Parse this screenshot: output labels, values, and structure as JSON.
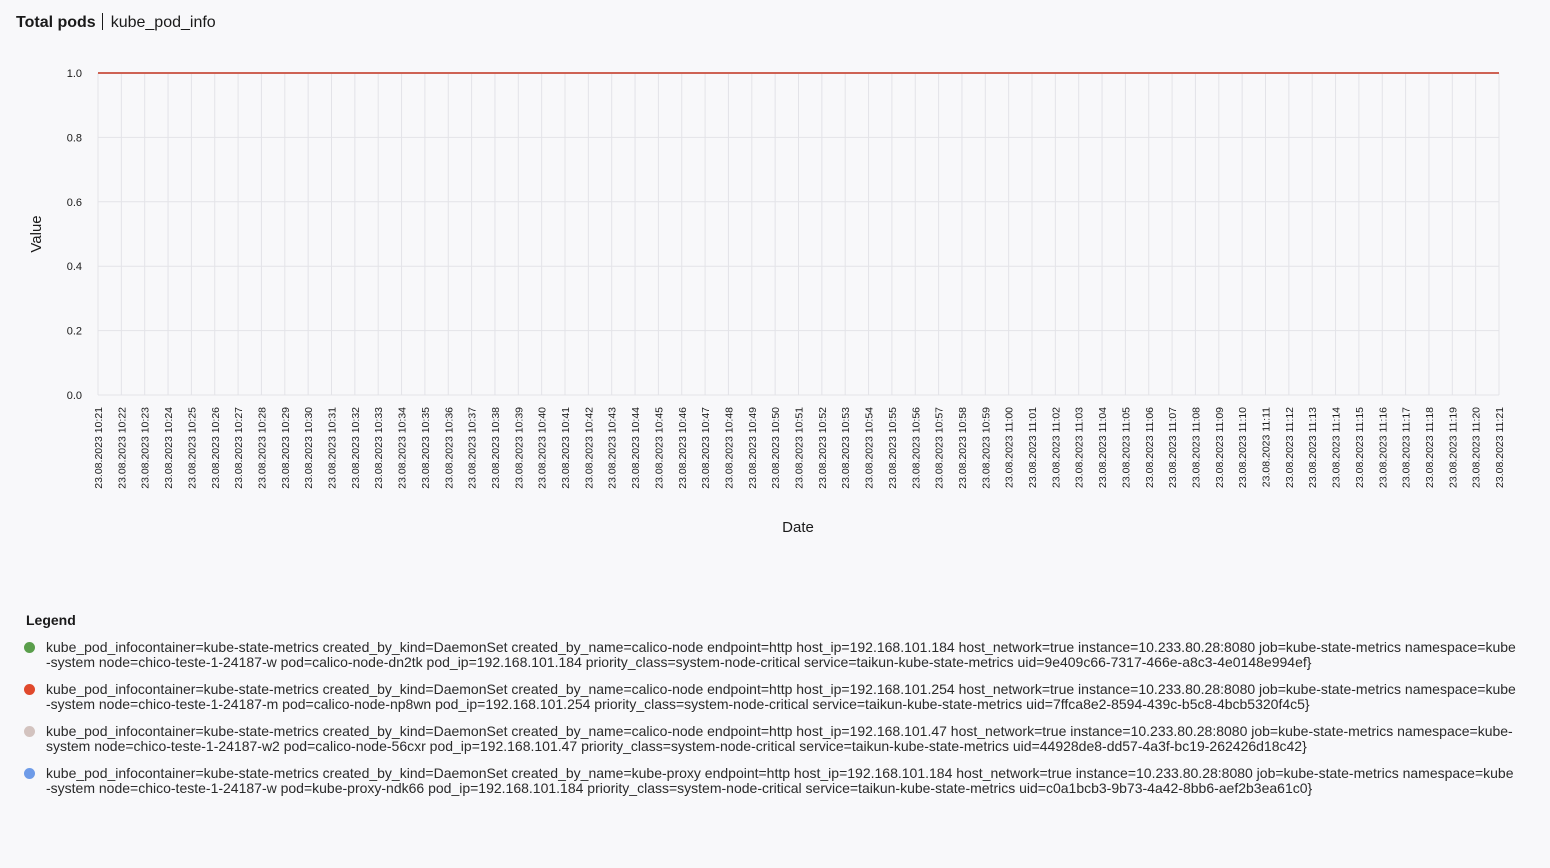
{
  "header": {
    "title": "Total pods",
    "subtitle": "kube_pod_info"
  },
  "chart_data": {
    "type": "line",
    "xlabel": "Date",
    "ylabel": "Value",
    "ylim": [
      0,
      1.0
    ],
    "yticks": [
      "0.0",
      "0.2",
      "0.4",
      "0.6",
      "0.8",
      "1.0"
    ],
    "grid": true,
    "x": [
      "23.08.2023 10:21",
      "23.08.2023 10:22",
      "23.08.2023 10:23",
      "23.08.2023 10:24",
      "23.08.2023 10:25",
      "23.08.2023 10:26",
      "23.08.2023 10:27",
      "23.08.2023 10:28",
      "23.08.2023 10:29",
      "23.08.2023 10:30",
      "23.08.2023 10:31",
      "23.08.2023 10:32",
      "23.08.2023 10:33",
      "23.08.2023 10:34",
      "23.08.2023 10:35",
      "23.08.2023 10:36",
      "23.08.2023 10:37",
      "23.08.2023 10:38",
      "23.08.2023 10:39",
      "23.08.2023 10:40",
      "23.08.2023 10:41",
      "23.08.2023 10:42",
      "23.08.2023 10:43",
      "23.08.2023 10:44",
      "23.08.2023 10:45",
      "23.08.2023 10:46",
      "23.08.2023 10:47",
      "23.08.2023 10:48",
      "23.08.2023 10:49",
      "23.08.2023 10:50",
      "23.08.2023 10:51",
      "23.08.2023 10:52",
      "23.08.2023 10:53",
      "23.08.2023 10:54",
      "23.08.2023 10:55",
      "23.08.2023 10:56",
      "23.08.2023 10:57",
      "23.08.2023 10:58",
      "23.08.2023 10:59",
      "23.08.2023 11:00",
      "23.08.2023 11:01",
      "23.08.2023 11:02",
      "23.08.2023 11:03",
      "23.08.2023 11:04",
      "23.08.2023 11:05",
      "23.08.2023 11:06",
      "23.08.2023 11:07",
      "23.08.2023 11:08",
      "23.08.2023 11:09",
      "23.08.2023 11:10",
      "23.08.2023 11:11",
      "23.08.2023 11:12",
      "23.08.2023 11:13",
      "23.08.2023 11:14",
      "23.08.2023 11:15",
      "23.08.2023 11:16",
      "23.08.2023 11:17",
      "23.08.2023 11:18",
      "23.08.2023 11:19",
      "23.08.2023 11:20",
      "23.08.2023 11:21"
    ],
    "series": [
      {
        "color": "#5a9e4b",
        "value": 1.0
      },
      {
        "color": "#e0492c",
        "value": 1.0
      },
      {
        "color": "#d3c3bf",
        "value": 1.0
      },
      {
        "color": "#6e9be8",
        "value": 1.0
      }
    ],
    "legend_title": "Legend",
    "legend": [
      {
        "color": "#5a9e4b",
        "label": "kube_pod_infocontainer=kube-state-metrics created_by_kind=DaemonSet created_by_name=calico-node endpoint=http host_ip=192.168.101.184 host_network=true instance=10.233.80.28:8080 job=kube-state-metrics namespace=kube-system node=chico-teste-1-24187-w pod=calico-node-dn2tk pod_ip=192.168.101.184 priority_class=system-node-critical service=taikun-kube-state-metrics uid=9e409c66-7317-466e-a8c3-4e0148e994ef}"
      },
      {
        "color": "#e0492c",
        "label": "kube_pod_infocontainer=kube-state-metrics created_by_kind=DaemonSet created_by_name=calico-node endpoint=http host_ip=192.168.101.254 host_network=true instance=10.233.80.28:8080 job=kube-state-metrics namespace=kube-system node=chico-teste-1-24187-m pod=calico-node-np8wn pod_ip=192.168.101.254 priority_class=system-node-critical service=taikun-kube-state-metrics uid=7ffca8e2-8594-439c-b5c8-4bcb5320f4c5}"
      },
      {
        "color": "#d3c3bf",
        "label": "kube_pod_infocontainer=kube-state-metrics created_by_kind=DaemonSet created_by_name=calico-node endpoint=http host_ip=192.168.101.47 host_network=true instance=10.233.80.28:8080 job=kube-state-metrics namespace=kube-system node=chico-teste-1-24187-w2 pod=calico-node-56cxr pod_ip=192.168.101.47 priority_class=system-node-critical service=taikun-kube-state-metrics uid=44928de8-dd57-4a3f-bc19-262426d18c42}"
      },
      {
        "color": "#6e9be8",
        "label": "kube_pod_infocontainer=kube-state-metrics created_by_kind=DaemonSet created_by_name=kube-proxy endpoint=http host_ip=192.168.101.184 host_network=true instance=10.233.80.28:8080 job=kube-state-metrics namespace=kube-system node=chico-teste-1-24187-w pod=kube-proxy-ndk66 pod_ip=192.168.101.184 priority_class=system-node-critical service=taikun-kube-state-metrics uid=c0a1bcb3-9b73-4a42-8bb6-aef2b3ea61c0}"
      }
    ]
  }
}
